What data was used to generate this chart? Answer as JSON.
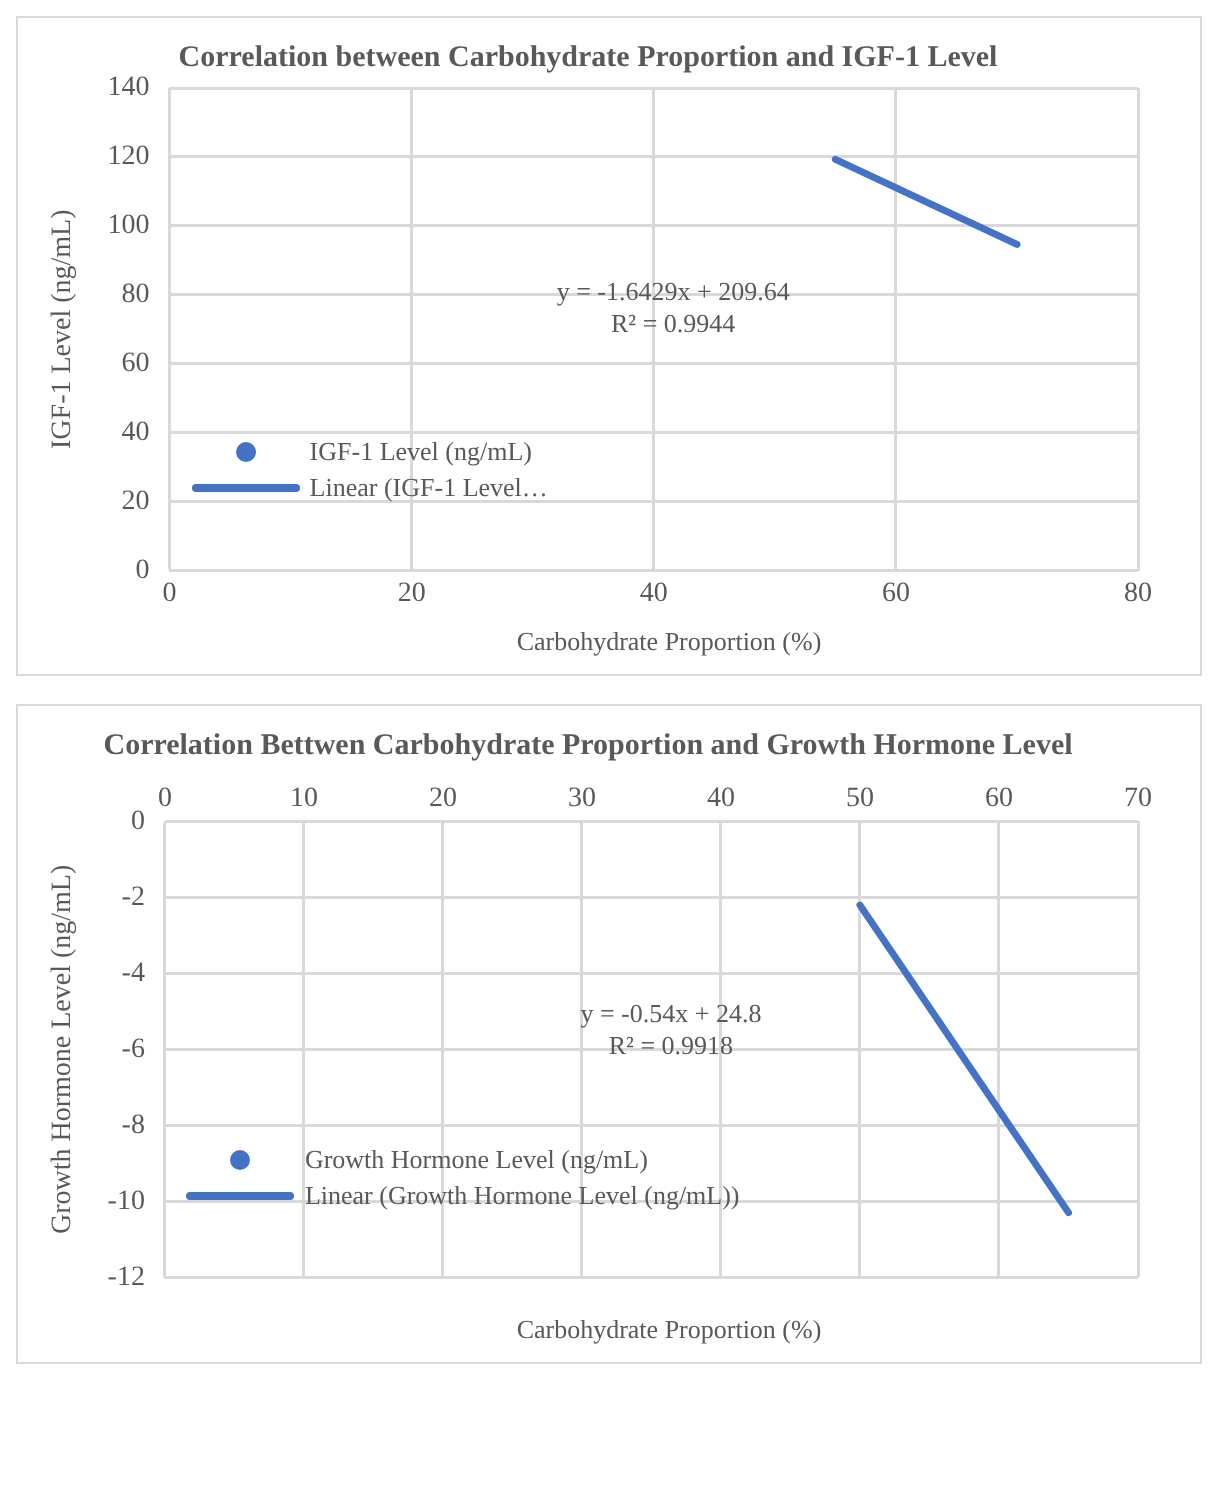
{
  "chart_data": [
    {
      "type": "scatter",
      "title": "Correlation between Carbohydrate Proportion and IGF-1 Level",
      "xlabel": "Carbohydrate Proportion (%)",
      "ylabel": "IGF-1 Level (ng/mL)",
      "xlim": [
        0,
        80
      ],
      "xticks": [
        0,
        20,
        40,
        60,
        80
      ],
      "ylim": [
        0,
        140
      ],
      "yticks": [
        0,
        20,
        40,
        60,
        80,
        100,
        120,
        140
      ],
      "grid": true,
      "legend": "bottom left",
      "series": [
        {
          "name": "IGF-1 Level (ng/mL)",
          "color": "#4472c4"
        },
        {
          "name": "Linear (IGF-1 Level…",
          "type": "line",
          "color": "#4472c4",
          "x": [
            55,
            70
          ],
          "values": [
            119.3,
            94.6
          ],
          "marker": "none"
        }
      ],
      "annotations": [
        "y = -1.6429x + 209.64\nR² = 0.9944"
      ]
    },
    {
      "type": "scatter",
      "title": "Correlation Bettwen Carbohydrate Proportion and Growth Hormone Level",
      "xlabel": "Carbohydrate Proportion (%)",
      "ylabel": "Growth Hormone Level (ng/mL)",
      "xlim": [
        0,
        70
      ],
      "xticks": [
        0,
        10,
        20,
        30,
        40,
        50,
        60,
        70
      ],
      "ylim": [
        -12,
        0
      ],
      "yticks": [
        -12,
        -10,
        -8,
        -6,
        -4,
        -2,
        0
      ],
      "grid": true,
      "legend": "bottom left",
      "series": [
        {
          "name": "Growth Hormone Level (ng/mL)",
          "color": "#4472c4"
        },
        {
          "name": "Linear (Growth Hormone Level (ng/mL))",
          "type": "line",
          "color": "#4472c4",
          "x": [
            50,
            65
          ],
          "values": [
            -2.2,
            -10.3
          ],
          "marker": "none"
        }
      ],
      "annotations": [
        "y = -0.54x + 24.8\nR² = 0.9918"
      ]
    }
  ]
}
